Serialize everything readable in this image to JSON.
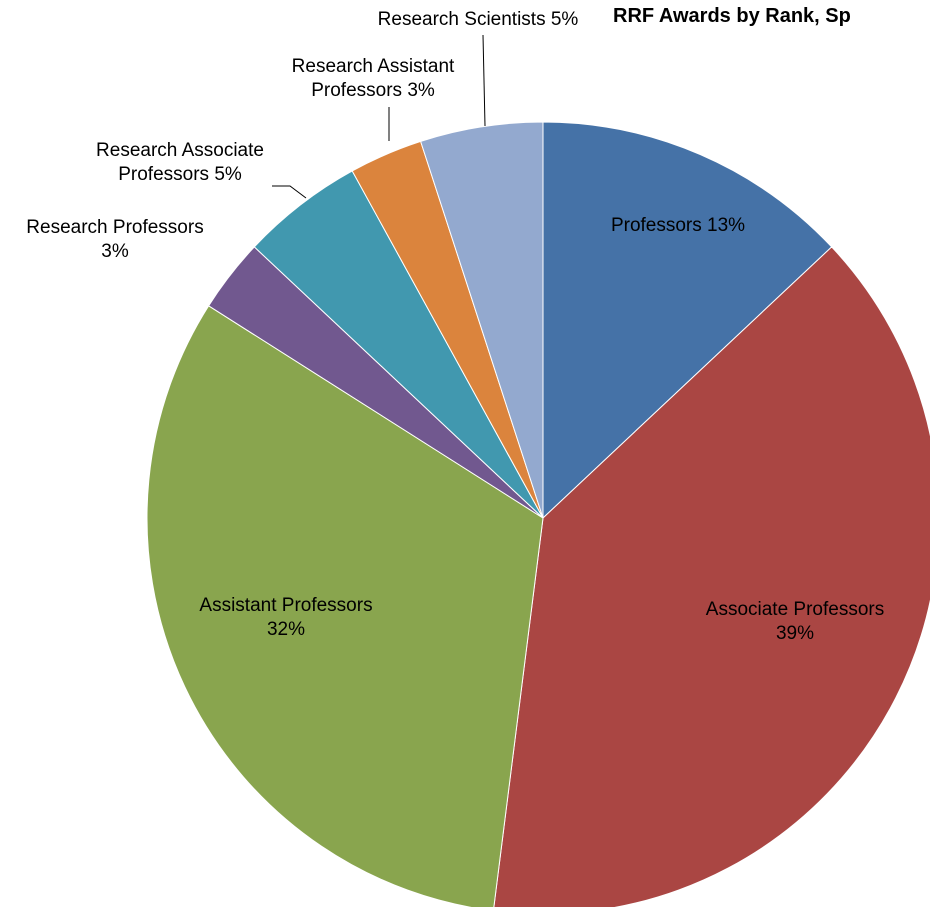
{
  "chart_data": {
    "type": "pie",
    "title": "RRF Awards by Rank, Sp",
    "categories": [
      "Professors",
      "Associate Professors",
      "Assistant Professors",
      "Research Professors",
      "Research Associate Professors",
      "Research Assistant Professors",
      "Research Scientists"
    ],
    "values": [
      13,
      39,
      32,
      3,
      5,
      3,
      5
    ],
    "value_labels": [
      "13%",
      "39%",
      "32%",
      "3%",
      "5%",
      "3%",
      "5%"
    ],
    "colors": [
      "#4572a7",
      "#aa4643",
      "#89a54e",
      "#71588f",
      "#4198af",
      "#db843d",
      "#93a9cf"
    ]
  }
}
